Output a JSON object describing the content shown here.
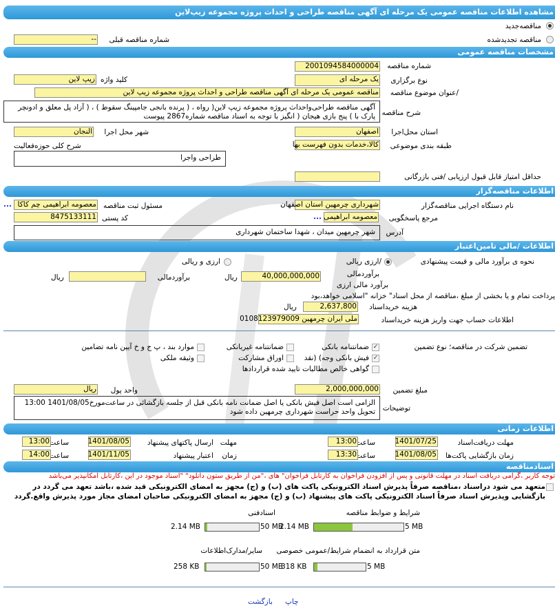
{
  "header": {
    "title": "مشاهده اطلاعات مناقصه  عمومی یک مرحله ای آگهی مناقصه طراحی و احداث پروژه  مجموعه زیپ‌لاین"
  },
  "tender_type": {
    "new_label": "مناقصه‌جدید",
    "renewed_label": "مناقصه تجدیدشده",
    "selected": "new",
    "prev_number_label": "شماره  مناقصه قبلی",
    "prev_number_value": "--"
  },
  "general": {
    "title": "مشخصات مناقصه عمومی",
    "number_label": "شماره مناقصه",
    "number_value": "2001094584000004",
    "holding_label": "نوع برگزاری",
    "holding_value": "یک مرحله ای",
    "keyword_label": "کلید واژه",
    "keyword_value": "زیپ لاین",
    "subject_label": "/عنوان  موضوع مناقصه",
    "subject_value": "مناقصه عمومی یک مرحله ای آگهی مناقصه طراحی و احداث پروژه مجموعه زیپ لاین",
    "desc_label": "شرح مناقصه",
    "desc_value": "آگهی  مناقصه طراحی‌واحداث پروژه مجموعه زیپ لاین( رواه ، ( پرنده بانجی  جامپینگ سقوط ) ، ( آزاد پل معلق و ادونچر پارک  با )  پنج  بازی  هیجان ( انگیز با توجه به اسناد مناقصه شماره2867 پیوست",
    "province_label": "استان محل‌اجرا",
    "province_value": "اصفهان",
    "city_label": "شهر محل اجرا",
    "city_value": "النجان",
    "category_label": "طبقه بندی موضوعی",
    "category_value": "کالا،خدمات بدون فهرست بها",
    "activity_label": "شرح کلی حوزه‌فعالیت",
    "activity_value": "طراحی واجرا",
    "min_score_label": "حداقل امتیاز قابل قبول  ارزیابی /فنی بازرگانی",
    "min_score_value": ""
  },
  "organizer": {
    "title": "اطلاعات مناقصه‌گزار",
    "org_label": "نام دستگاه اجرایی  مناقصه‌گزار",
    "org_value": "شهرداری چرمهین استان اصفهان",
    "registrar_label": "مسئول ثبت مناقصه",
    "registrar_value": "معصومه ابراهیمی چم کاکا",
    "reference_label": "مرجع پاسخگویی",
    "reference_value": "معصومه ابراهیمی",
    "postal_label": "کد  پستی",
    "postal_value": "8475133111",
    "address_label": "آدرس",
    "address_value": "شهر  چرمهین میدان ، شهدا  ساختمان  شهرداری",
    "more": "..."
  },
  "finance": {
    "title": "اطلاعات /مالی تامین‌اعتبار",
    "method_label": "نحوه ی برآورد مالی و قیمت پیشنهادی",
    "opt_rial": "/ارزی ریالی",
    "opt_both": "ارزی و ریالی",
    "selected": "rial",
    "estimate_label": "برآوردمالی",
    "estimate_fx_label": "برآورد مالی ارزی",
    "estimate_value": "40,000,000,000",
    "currency": "ریال",
    "estimate2_label": "برآوردمالی",
    "estimate2_value": "",
    "currency2": "ریال",
    "payment_note": "پرداخت تمام و یا بخشی از مبلغ  ،مناقصه از محل اسناد\" خزانه \"اسلامی خواهد،بود",
    "doc_fee_label": "هزینه خریداسناد",
    "doc_fee_value": "2,637,800",
    "doc_fee_currency": "ریال",
    "account_label": "اطلاعات حساب جهت واریز  هزینه خریداسناد",
    "account_value": "ملی ایران چرمهین 0108123979009"
  },
  "guarantee": {
    "label": "تضمین شرکت در  مناقصه؛   نوع    تضمین",
    "options": [
      {
        "label": "ضمانتنامه  بانکی",
        "checked": true
      },
      {
        "label": "ضمانتنامه  غیربانکی",
        "checked": false
      },
      {
        "label": "موارد  بند ، پ ج و خ آیین نامه تضامین",
        "checked": false
      },
      {
        "label": "فیش  بانکی وجه) (نقد",
        "checked": true
      },
      {
        "label": "اوراق  مشارکت",
        "checked": false
      },
      {
        "label": "وثیقه ملکی",
        "checked": false
      },
      {
        "label": "گواهی  خالص مطالبات تایید شده قراردادها",
        "checked": false
      }
    ],
    "amount_label": "مبلغ تضمین",
    "amount_value": "2,000,000,000",
    "unit_label": "واحد پول",
    "unit_value": "ریال",
    "notes_label": "توضیحات",
    "notes_value": "الزامی است اصل فیش بانکی یا اصل  ضمانت نامه بانکی قبل از جلسه  بازگشائی  در ساعت‌مورخ1401/08/05 13:00 تحویل واحد حراست  شهرداری  چرمهین داده شود"
  },
  "timing": {
    "title": "اطلاعات زمانی",
    "doc_deadline_label": "مهلت  دریافت‌اسناد",
    "doc_deadline_date": "1401/07/25",
    "doc_deadline_time": "13:00",
    "submit_label1": "مهلت",
    "submit_label2": "ارسال  پاکتهای پیشنهاد",
    "submit_date": "1401/08/05",
    "submit_time": "13:00",
    "opening_label": "زمان  بازگشایی پاکت‌ها",
    "opening_date": "1401/08/05",
    "opening_time": "13:30",
    "validity_label1": "زمان",
    "validity_label2": "اعتبار پیشنهاد",
    "validity_date": "1401/11/05",
    "validity_time": "14:00",
    "time_label": "ساعت"
  },
  "documents": {
    "title": "اسنادمناقصه",
    "warning": "توجه کاربر ،گرامی دریافت اسناد در مهلت قانونی و پس از افزودن فراخوان به کارتابل فراخوان\" های ،\"من از طریق ستون دانلود\" \"اسناد موجود در این ،کارتابل امکانپذیر می‌باشد",
    "commitment": "متعهد می شود در‌اسناد ،مناقصه صرفاً پذیرش اسناد الکترونیکی پاکت های (ب) و (ج) مجهز به امضای الکترونیکی قید شده ،باشد تعهد می گردد در بازگشایی وپذیرش اسناد صرفاً اسناد الکترونیکی پاکت های پیشنهاد (ب) و (ج) مجهز به امضای الکترونیکی صاحبان امضای مجاز مورد پذیرش واقع.گردد",
    "files": [
      {
        "label": "شرایط و  ضوابط مناقصه",
        "size": "2.14 MB",
        "max": "5 MB",
        "fraction": 0.428
      },
      {
        "label": "اسنادفنی",
        "size": "2.14 MB",
        "max": "50 MB",
        "fraction": 0.043
      },
      {
        "label": "متن قرارداد به  انضمام شرایط/عمومی  خصوصی",
        "size": "318 KB",
        "max": "5 MB",
        "fraction": 0.062
      },
      {
        "label": "سایر/مدارک‌اطلاعات",
        "size": "258 KB",
        "max": "50 MB",
        "fraction": 0.005
      }
    ]
  },
  "footer": {
    "print": "چاپ",
    "back": "بازگشت"
  }
}
